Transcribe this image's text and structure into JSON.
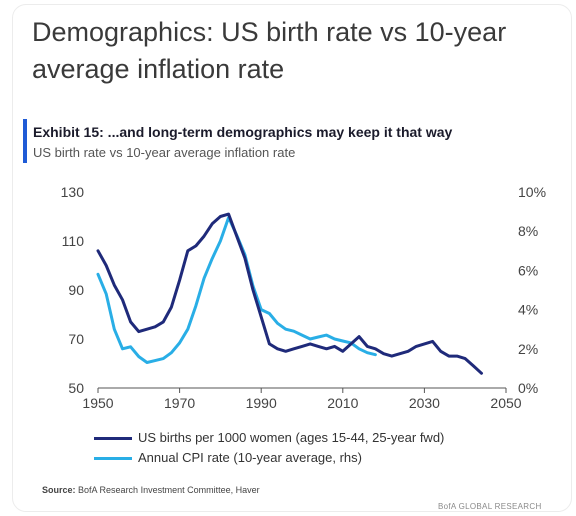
{
  "headline": "Demographics: US birth rate vs 10-year average inflation rate",
  "exhibit_title": "Exhibit 15: ...and long-term demographics may keep it that way",
  "exhibit_subtitle": "US birth rate vs 10-year average inflation rate",
  "source_label": "Source:",
  "source_text": "BofA Research Investment Committee, Haver",
  "brand": "BofA GLOBAL RESEARCH",
  "colors": {
    "births": "#1f2a7a",
    "cpi": "#29aee6",
    "accent": "#1f5bd6"
  },
  "chart_data": {
    "type": "line",
    "x_ticks": [
      "1950",
      "1970",
      "1990",
      "2010",
      "2030",
      "2050"
    ],
    "xlim": [
      1950,
      2050
    ],
    "y_left_ticks": [
      "50",
      "70",
      "90",
      "110",
      "130"
    ],
    "ylim_left": [
      50,
      130
    ],
    "y_right_ticks": [
      "0%",
      "2%",
      "4%",
      "6%",
      "8%",
      "10%"
    ],
    "ylim_right": [
      0,
      10
    ],
    "legend": [
      {
        "label": "US births per 1000 women (ages 15-44, 25-year fwd)"
      },
      {
        "label": "Annual CPI rate (10-year average, rhs)"
      }
    ],
    "series": [
      {
        "name": "US births per 1000 women (ages 15-44, 25-year fwd)",
        "axis": "left",
        "x": [
          1950,
          1952,
          1954,
          1956,
          1958,
          1960,
          1962,
          1964,
          1966,
          1968,
          1970,
          1972,
          1974,
          1976,
          1978,
          1980,
          1982,
          1984,
          1986,
          1988,
          1990,
          1992,
          1994,
          1996,
          1998,
          2000,
          2002,
          2004,
          2006,
          2008,
          2010,
          2012,
          2014,
          2016,
          2018,
          2020,
          2022,
          2024,
          2026,
          2028,
          2030,
          2032,
          2034,
          2036,
          2038,
          2040,
          2042,
          2044
        ],
        "y": [
          106,
          100,
          92,
          86,
          77,
          73,
          74,
          75,
          77,
          83,
          94,
          106,
          108,
          112,
          117,
          120,
          121,
          112,
          103,
          90,
          79,
          68,
          66,
          65,
          66,
          67,
          68,
          67,
          66,
          67,
          65,
          68,
          71,
          67,
          66,
          64,
          63,
          64,
          65,
          67,
          68,
          69,
          65,
          63,
          63,
          62,
          59,
          56
        ]
      },
      {
        "name": "Annual CPI rate (10-year average, rhs)",
        "axis": "right",
        "x": [
          1950,
          1952,
          1954,
          1956,
          1958,
          1960,
          1962,
          1964,
          1966,
          1968,
          1970,
          1972,
          1974,
          1976,
          1978,
          1980,
          1982,
          1984,
          1986,
          1988,
          1990,
          1992,
          1994,
          1996,
          1998,
          2000,
          2002,
          2004,
          2006,
          2008,
          2010,
          2012,
          2014,
          2016,
          2018
        ],
        "y": [
          5.8,
          4.8,
          3.0,
          2.0,
          2.1,
          1.6,
          1.3,
          1.4,
          1.5,
          1.8,
          2.3,
          3.0,
          4.2,
          5.6,
          6.6,
          7.5,
          8.7,
          7.8,
          6.8,
          5.2,
          4.0,
          3.8,
          3.3,
          3.0,
          2.9,
          2.7,
          2.5,
          2.6,
          2.7,
          2.5,
          2.4,
          2.3,
          2.0,
          1.8,
          1.7
        ]
      }
    ]
  }
}
